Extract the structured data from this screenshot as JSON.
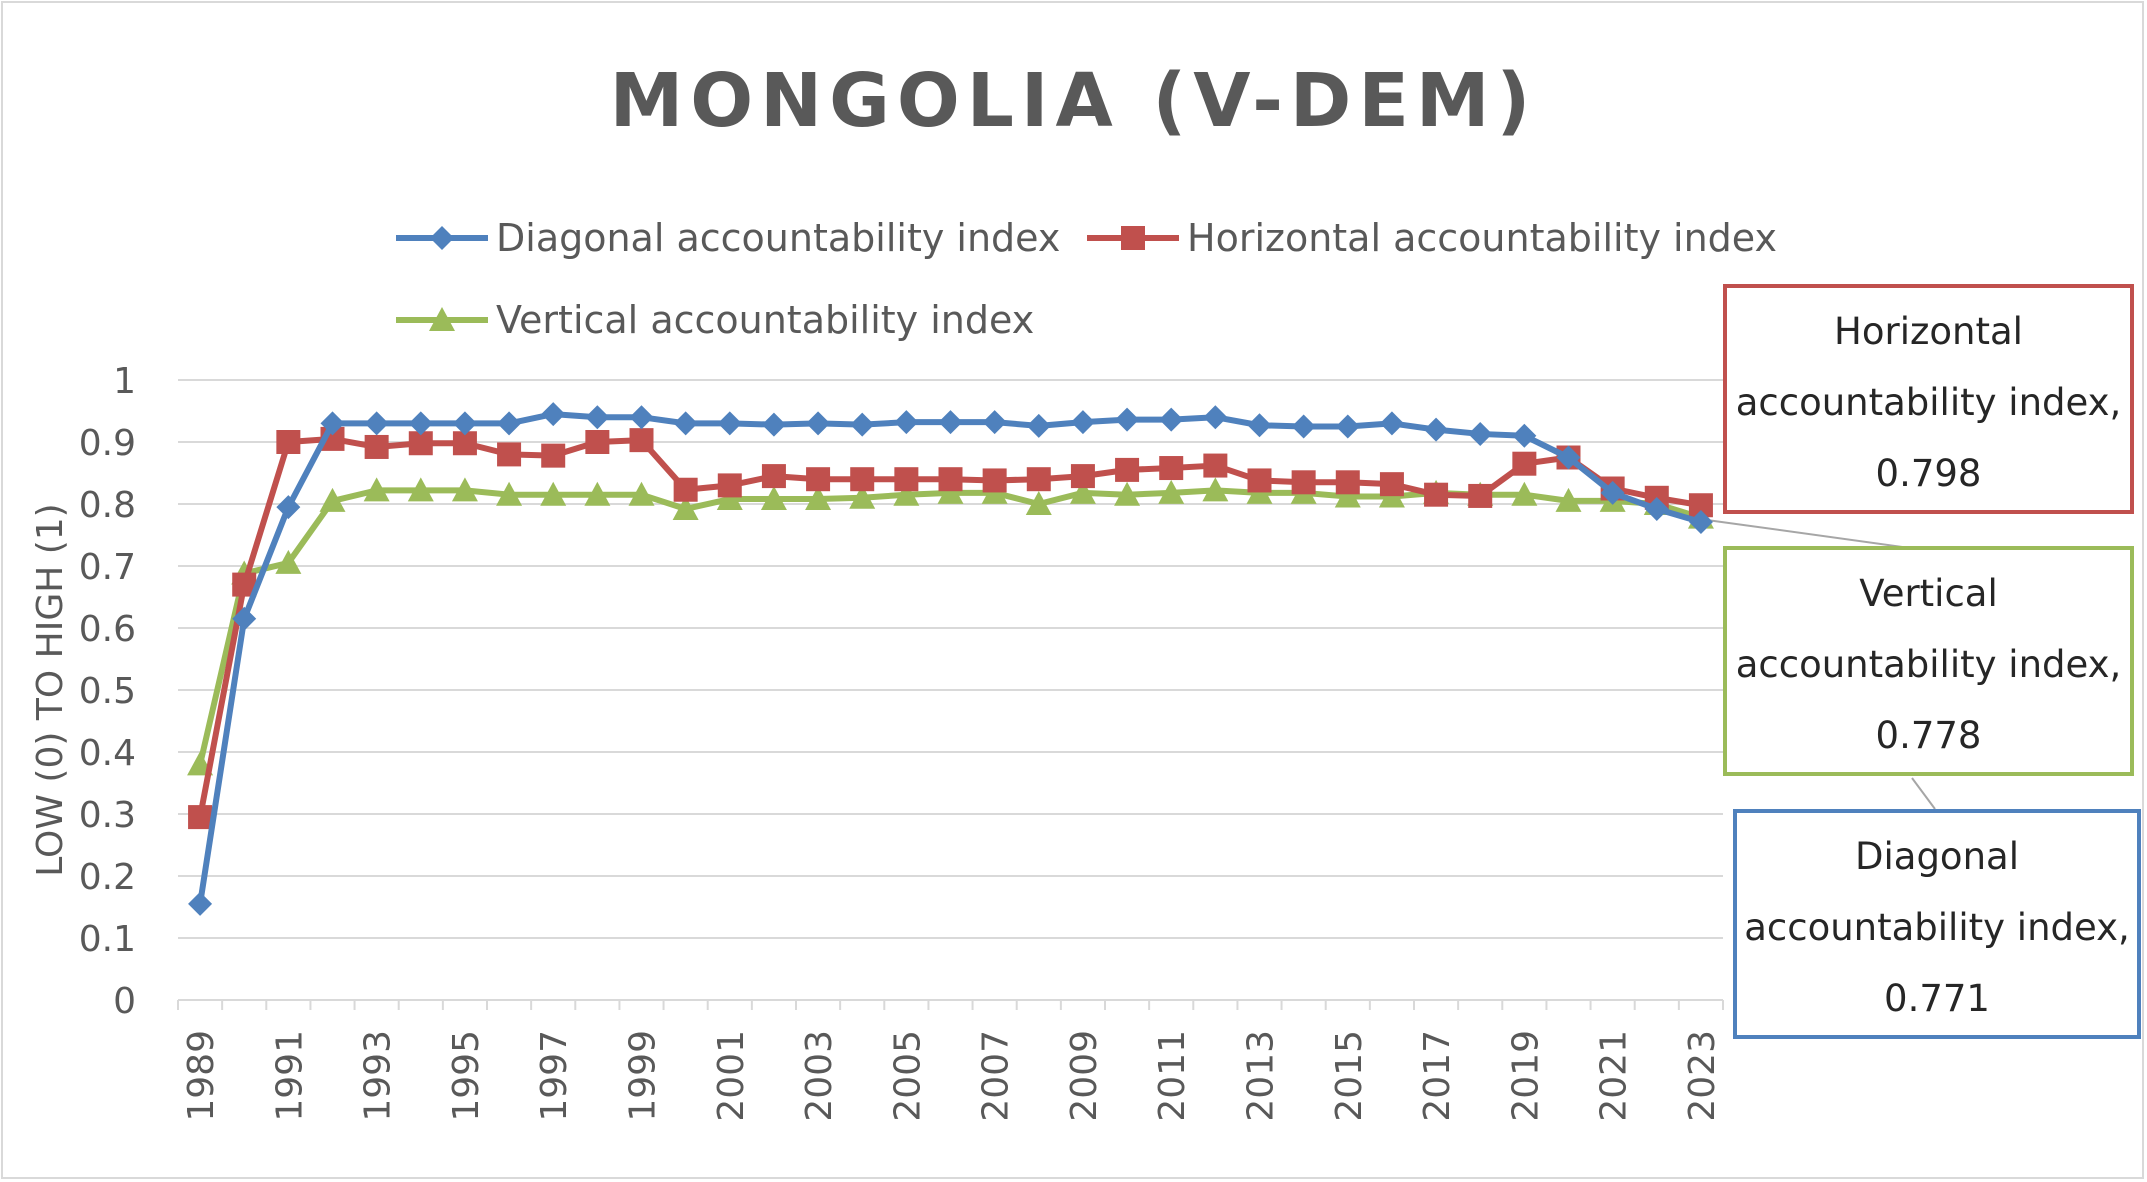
{
  "chart_data": {
    "type": "line",
    "title": "MONGOLIA (V-DEM)",
    "ylabel": "LOW (0) TO HIGH (1)",
    "xlabel": "",
    "ylim": [
      0,
      1
    ],
    "yticks": [
      "0",
      "0.1",
      "0.2",
      "0.3",
      "0.4",
      "0.5",
      "0.6",
      "0.7",
      "0.8",
      "0.9",
      "1"
    ],
    "grid": true,
    "legend_position": "top",
    "x": [
      "1989",
      "1990",
      "1991",
      "1992",
      "1993",
      "1994",
      "1995",
      "1996",
      "1997",
      "1998",
      "1999",
      "2000",
      "2001",
      "2002",
      "2003",
      "2004",
      "2005",
      "2006",
      "2007",
      "2008",
      "2009",
      "2010",
      "2011",
      "2012",
      "2013",
      "2014",
      "2015",
      "2016",
      "2017",
      "2018",
      "2019",
      "2020",
      "2021",
      "2022",
      "2023"
    ],
    "xticks": [
      "1989",
      "1991",
      "1993",
      "1995",
      "1997",
      "1999",
      "2001",
      "2003",
      "2005",
      "2007",
      "2009",
      "2011",
      "2013",
      "2015",
      "2017",
      "2019",
      "2021",
      "2023"
    ],
    "series": [
      {
        "name": "Diagonal accountability index",
        "color": "#4f81bd",
        "marker": "diamond",
        "values": [
          0.155,
          0.615,
          0.795,
          0.93,
          0.93,
          0.93,
          0.93,
          0.93,
          0.945,
          0.94,
          0.94,
          0.93,
          0.93,
          0.928,
          0.93,
          0.928,
          0.932,
          0.932,
          0.932,
          0.926,
          0.932,
          0.936,
          0.936,
          0.94,
          0.927,
          0.925,
          0.925,
          0.93,
          0.92,
          0.913,
          0.91,
          0.875,
          0.818,
          0.792,
          0.771
        ]
      },
      {
        "name": "Horizontal accountability index",
        "color": "#c0504d",
        "marker": "square",
        "values": [
          0.295,
          0.67,
          0.9,
          0.905,
          0.892,
          0.898,
          0.898,
          0.88,
          0.878,
          0.9,
          0.903,
          0.823,
          0.83,
          0.845,
          0.84,
          0.84,
          0.84,
          0.84,
          0.838,
          0.84,
          0.845,
          0.855,
          0.858,
          0.862,
          0.838,
          0.835,
          0.835,
          0.832,
          0.815,
          0.813,
          0.865,
          0.875,
          0.825,
          0.81,
          0.798
        ]
      },
      {
        "name": "Vertical accountability index",
        "color": "#9bbb59",
        "marker": "triangle",
        "values": [
          0.38,
          0.688,
          0.705,
          0.805,
          0.822,
          0.822,
          0.822,
          0.815,
          0.815,
          0.815,
          0.815,
          0.792,
          0.808,
          0.808,
          0.808,
          0.81,
          0.815,
          0.818,
          0.818,
          0.8,
          0.818,
          0.815,
          0.818,
          0.822,
          0.818,
          0.818,
          0.812,
          0.812,
          0.818,
          0.815,
          0.815,
          0.805,
          0.805,
          0.8,
          0.778
        ]
      }
    ],
    "annotations": [
      {
        "series": "Horizontal accountability index",
        "lines": [
          "Horizontal",
          "accountability index,",
          "0.798"
        ]
      },
      {
        "series": "Vertical accountability index",
        "lines": [
          "Vertical",
          "accountability index,",
          "0.778"
        ]
      },
      {
        "series": "Diagonal accountability index",
        "lines": [
          "Diagonal",
          "accountability index,",
          "0.771"
        ]
      }
    ]
  }
}
